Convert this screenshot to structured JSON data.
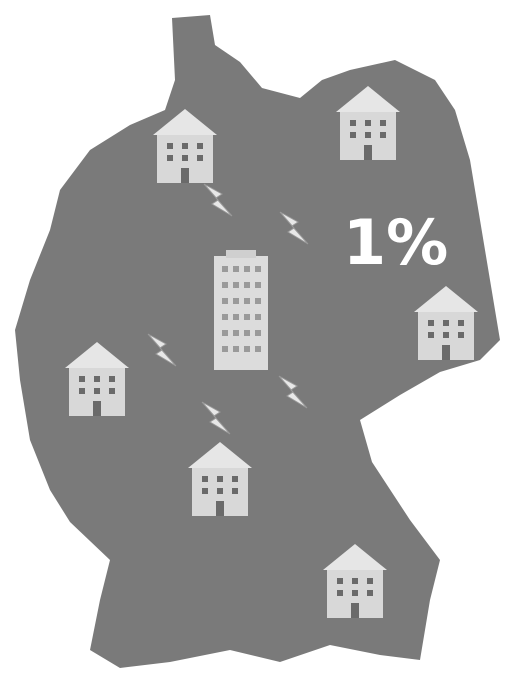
{
  "map": {
    "label": "1%"
  }
}
